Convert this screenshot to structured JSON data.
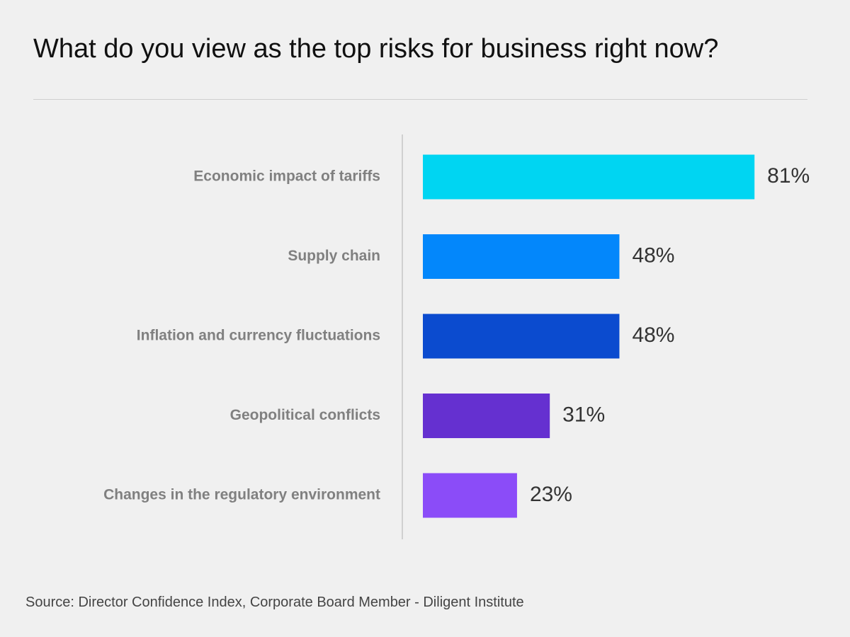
{
  "title": "What do you view as the top risks for business right now?",
  "source": "Source: Director Confidence Index, Corporate Board Member - Diligent Institute",
  "chart_data": {
    "type": "bar",
    "orientation": "horizontal",
    "categories": [
      "Economic impact of tariffs",
      "Supply chain",
      "Inflation and currency fluctuations",
      "Geopolitical conflicts",
      "Changes in the regulatory environment"
    ],
    "values": [
      81,
      48,
      48,
      31,
      23
    ],
    "value_labels": [
      "81%",
      "48%",
      "48%",
      "31%",
      "23%"
    ],
    "colors": [
      "#00d5f2",
      "#0387fb",
      "#0b4bcf",
      "#6530d0",
      "#8b4cf8"
    ],
    "unit": "%",
    "xlim": [
      0,
      100
    ],
    "grid": false,
    "legend": "none"
  }
}
